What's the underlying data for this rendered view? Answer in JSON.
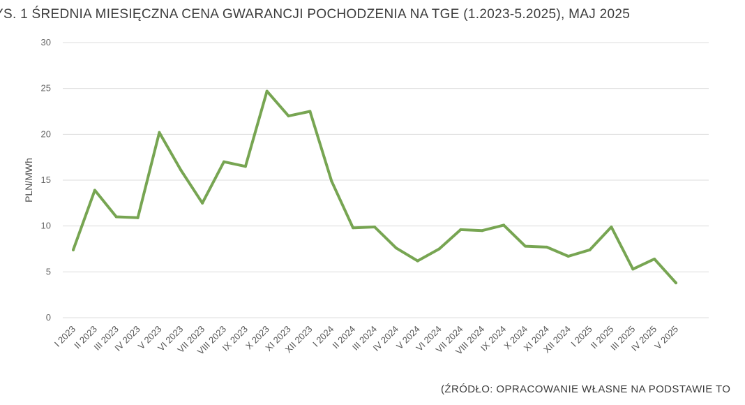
{
  "header": {
    "title": "YS. 1 ŚREDNIA MIESIĘCZNA CENA GWARANCJI POCHODZENIA NA TGE (1.2023-5.2025), MAJ 2025"
  },
  "footer": {
    "source": "(ŹRÓDŁO: OPRACOWANIE WŁASNE NA PODSTAWIE TO"
  },
  "colors": {
    "series": "#77a552",
    "grid": "#dcdcdc"
  },
  "chart_data": {
    "type": "line",
    "title": "",
    "xlabel": "",
    "ylabel": "PLN/MWh",
    "ylim": [
      0,
      30
    ],
    "yticks": [
      0,
      5,
      10,
      15,
      20,
      25,
      30
    ],
    "grid": true,
    "legend": "none",
    "categories": [
      "I 2023",
      "II 2023",
      "III 2023",
      "IV 2023",
      "V 2023",
      "VI 2023",
      "VII 2023",
      "VIII 2023",
      "IX 2023",
      "X 2023",
      "XI 2023",
      "XII 2023",
      "I 2024",
      "II 2024",
      "III 2024",
      "IV 2024",
      "V 2024",
      "VI 2024",
      "VII 2024",
      "VIII 2024",
      "IX 2024",
      "X 2024",
      "XI 2024",
      "XII 2024",
      "I 2025",
      "II 2025",
      "III 2025",
      "IV 2025",
      "V 2025"
    ],
    "series": [
      {
        "values": [
          7.4,
          13.9,
          11.0,
          10.9,
          20.2,
          16.1,
          12.5,
          17.0,
          16.5,
          24.7,
          22.0,
          22.5,
          14.9,
          9.8,
          9.9,
          7.6,
          6.2,
          7.5,
          9.6,
          9.5,
          10.1,
          7.8,
          7.7,
          6.7,
          7.4,
          9.9,
          5.3,
          6.4,
          3.8
        ]
      }
    ]
  }
}
